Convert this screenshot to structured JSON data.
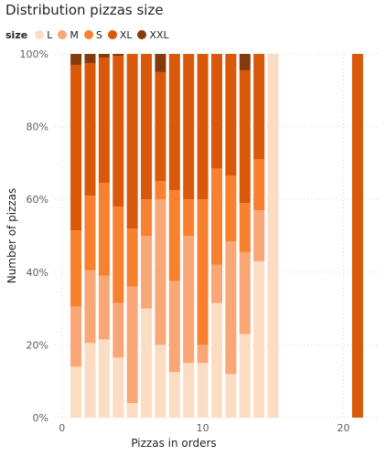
{
  "chart_data": {
    "type": "bar",
    "stacked": "100%",
    "title": "Distribution pizzas size",
    "xlabel": "Pizzas in orders",
    "ylabel": "Number of pizzas",
    "legend": {
      "title": "size",
      "placement": "top-left",
      "entries": [
        "L",
        "M",
        "S",
        "XL",
        "XXL"
      ]
    },
    "colors": {
      "L": "#fcdcc3",
      "M": "#f9a777",
      "S": "#f7812f",
      "XL": "#d9580a",
      "XXL": "#853a0c"
    },
    "xlim": [
      -0.5,
      22.5
    ],
    "xticks": [
      0,
      10,
      20
    ],
    "ylim": [
      0,
      100
    ],
    "yticks": [
      "0%",
      "20%",
      "40%",
      "60%",
      "80%",
      "100%"
    ],
    "grid": true,
    "x": [
      1,
      2,
      3,
      4,
      5,
      6,
      7,
      8,
      9,
      10,
      11,
      12,
      13,
      14,
      15,
      21
    ],
    "series": [
      {
        "name": "L",
        "values": [
          14,
          20.5,
          21.5,
          16.5,
          4,
          30,
          20,
          12.5,
          15,
          15,
          31.5,
          12,
          23,
          43,
          100,
          0
        ]
      },
      {
        "name": "M",
        "values": [
          16.5,
          20,
          17.5,
          15,
          32,
          20,
          40,
          25,
          35,
          5,
          10.5,
          36.5,
          22.5,
          14,
          0,
          0
        ]
      },
      {
        "name": "S",
        "values": [
          21,
          20.5,
          25.5,
          26.5,
          16,
          10,
          5,
          25,
          10,
          40,
          26.5,
          18,
          13.5,
          14,
          0,
          0
        ]
      },
      {
        "name": "XL",
        "values": [
          45.5,
          36.5,
          34.5,
          41.5,
          48,
          40,
          30,
          37.5,
          40,
          40,
          31.5,
          33.5,
          36.5,
          29,
          0,
          100
        ]
      },
      {
        "name": "XXL",
        "values": [
          3,
          2.5,
          1,
          0.5,
          0,
          0,
          5,
          0,
          0,
          0,
          0,
          0,
          4.5,
          0,
          0,
          0
        ]
      }
    ]
  }
}
